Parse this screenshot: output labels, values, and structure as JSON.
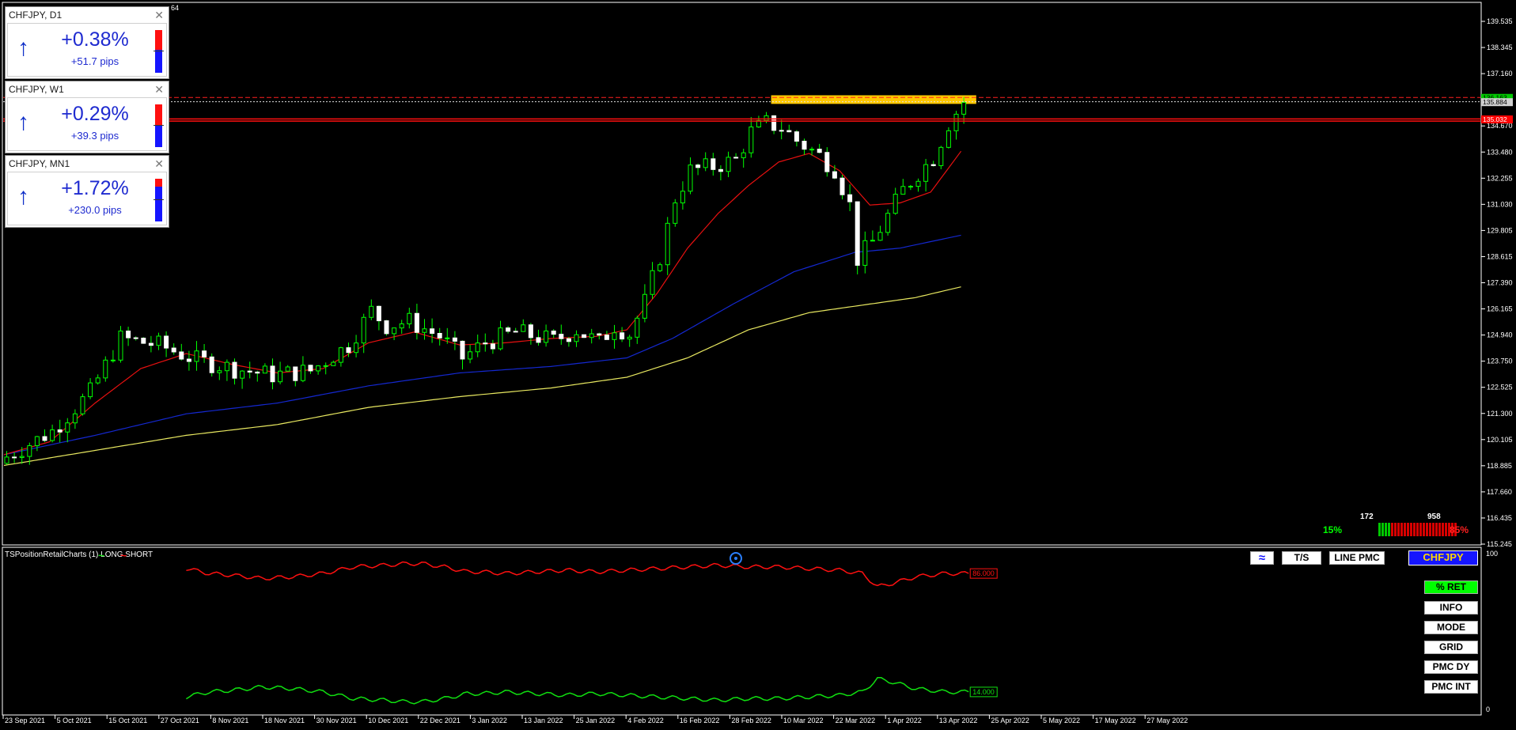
{
  "panels": [
    {
      "title": "CHFJPY, D1",
      "pct": "+0.38%",
      "pips": "+51.7 pips",
      "red_frac": 0.47
    },
    {
      "title": "CHFJPY, W1",
      "pct": "+0.29%",
      "pips": "+39.3 pips",
      "red_frac": 0.48
    },
    {
      "title": "CHFJPY, MN1",
      "pct": "+1.72%",
      "pips": "+230.0 pips",
      "red_frac": 0.18
    }
  ],
  "close_glyph": "✕",
  "top_label": "64",
  "price_axis": [
    "139.535",
    "138.345",
    "137.160",
    "135.970",
    "134.670",
    "133.480",
    "132.255",
    "131.030",
    "129.805",
    "128.615",
    "127.390",
    "126.165",
    "124.940",
    "123.750",
    "122.525",
    "121.300",
    "120.105",
    "118.885",
    "117.660",
    "116.435",
    "115.245"
  ],
  "price_tags": [
    {
      "text": "136.163",
      "price": 135.98,
      "bg": "#00c800",
      "color": "#000000"
    },
    {
      "text": "135.884",
      "price": 135.78,
      "bg": "#d0d0d0",
      "color": "#000000"
    },
    {
      "text": "135.032",
      "price": 134.98,
      "bg": "#ff0000",
      "color": "#ffffff"
    }
  ],
  "date_axis": [
    "23 Sep 2021",
    "5 Oct 2021",
    "15 Oct 2021",
    "27 Oct 2021",
    "8 Nov 2021",
    "18 Nov 2021",
    "30 Nov 2021",
    "10 Dec 2021",
    "22 Dec 2021",
    "3 Jan 2022",
    "13 Jan 2022",
    "25 Jan 2022",
    "4 Feb 2022",
    "16 Feb 2022",
    "28 Feb 2022",
    "10 Mar 2022",
    "22 Mar 2022",
    "1 Apr 2022",
    "13 Apr 2022",
    "25 Apr 2022",
    "5 May 2022",
    "17 May 2022",
    "27 May 2022"
  ],
  "indicator": {
    "title": "TSPositionRetailCharts (1) LONG SHORT",
    "legend_green": "~",
    "legend_red": "~",
    "axis_top": "100",
    "axis_bottom": "0",
    "short_value": "86.000",
    "long_value": "14.000"
  },
  "sentiment": {
    "long_count": "172",
    "short_count": "958",
    "long_pct": "15%",
    "short_pct": "85%"
  },
  "toolbar": {
    "wave_icon": "≈",
    "ts": "T/S",
    "line_pmc": "LINE PMC",
    "symbol": "CHFJPY",
    "ret": "% RET",
    "info": "INFO",
    "mode": "MODE",
    "grid": "GRID",
    "pmc_dy": "PMC DY",
    "pmc_int": "PMC INT"
  },
  "colors": {
    "bull": "#00ff00",
    "bear": "#ffffff",
    "ma_red": "#e81010",
    "ma_blue": "#1428d0",
    "ma_yellow": "#e8e860",
    "zone": "#ffc800",
    "short_line": "#ff1010",
    "long_line": "#10e010"
  },
  "chart_data": {
    "type": "candlestick",
    "symbol": "CHFJPY",
    "timeframe": "D1",
    "ylim": [
      115.245,
      140.1
    ],
    "close_path": [
      [
        0,
        119.3
      ],
      [
        6,
        120.5
      ],
      [
        11,
        122.3
      ],
      [
        15,
        124.8
      ],
      [
        20,
        124.5
      ],
      [
        25,
        123.8
      ],
      [
        30,
        123.4
      ],
      [
        35,
        123.1
      ],
      [
        40,
        123.3
      ],
      [
        45,
        124.5
      ],
      [
        48,
        126.1
      ],
      [
        50,
        125.4
      ],
      [
        53,
        125.6
      ],
      [
        57,
        124.9
      ],
      [
        60,
        123.9
      ],
      [
        63,
        124.6
      ],
      [
        67,
        125.1
      ],
      [
        72,
        124.7
      ],
      [
        75,
        125.2
      ],
      [
        78,
        124.6
      ],
      [
        80,
        125.4
      ],
      [
        82,
        125.0
      ],
      [
        84,
        126.5
      ],
      [
        86,
        128.6
      ],
      [
        88,
        131.3
      ],
      [
        90,
        132.6
      ],
      [
        93,
        132.8
      ],
      [
        96,
        133.1
      ],
      [
        98,
        134.4
      ],
      [
        100,
        134.8
      ],
      [
        102,
        134.6
      ],
      [
        104,
        134.0
      ],
      [
        107,
        133.3
      ],
      [
        109,
        132.7
      ],
      [
        111,
        131.0
      ],
      [
        112,
        128.5
      ],
      [
        114,
        129.3
      ],
      [
        116,
        130.5
      ],
      [
        118,
        131.7
      ],
      [
        120,
        132.5
      ],
      [
        122,
        133.2
      ],
      [
        124,
        134.8
      ],
      [
        126,
        135.8
      ]
    ],
    "ma_red": [
      [
        0,
        119.4
      ],
      [
        6,
        120.0
      ],
      [
        12,
        121.8
      ],
      [
        18,
        123.4
      ],
      [
        24,
        124.1
      ],
      [
        30,
        123.6
      ],
      [
        36,
        123.2
      ],
      [
        42,
        123.4
      ],
      [
        48,
        124.6
      ],
      [
        54,
        125.1
      ],
      [
        60,
        124.5
      ],
      [
        66,
        124.6
      ],
      [
        72,
        124.8
      ],
      [
        78,
        124.9
      ],
      [
        82,
        125.2
      ],
      [
        86,
        126.9
      ],
      [
        90,
        129.0
      ],
      [
        94,
        130.6
      ],
      [
        98,
        131.9
      ],
      [
        102,
        133.0
      ],
      [
        106,
        133.4
      ],
      [
        110,
        132.6
      ],
      [
        114,
        131.0
      ],
      [
        118,
        131.1
      ],
      [
        122,
        131.6
      ],
      [
        126,
        133.5
      ]
    ],
    "ma_blue": [
      [
        0,
        119.4
      ],
      [
        12,
        120.3
      ],
      [
        24,
        121.3
      ],
      [
        36,
        121.8
      ],
      [
        48,
        122.6
      ],
      [
        60,
        123.2
      ],
      [
        72,
        123.5
      ],
      [
        82,
        123.9
      ],
      [
        88,
        124.8
      ],
      [
        96,
        126.4
      ],
      [
        104,
        127.9
      ],
      [
        112,
        128.8
      ],
      [
        118,
        129.0
      ],
      [
        126,
        129.6
      ]
    ],
    "ma_yellow": [
      [
        0,
        118.9
      ],
      [
        12,
        119.6
      ],
      [
        24,
        120.3
      ],
      [
        36,
        120.8
      ],
      [
        48,
        121.6
      ],
      [
        60,
        122.1
      ],
      [
        72,
        122.5
      ],
      [
        82,
        123.0
      ],
      [
        90,
        123.9
      ],
      [
        98,
        125.2
      ],
      [
        106,
        126.0
      ],
      [
        114,
        126.4
      ],
      [
        120,
        126.7
      ],
      [
        126,
        127.2
      ]
    ],
    "levels": [
      136.0,
      135.8,
      135.0,
      134.9
    ],
    "zone": {
      "from_bar": 101,
      "to_bar": 128,
      "low": 135.7,
      "high": 136.1
    },
    "indicator_short": [
      [
        24,
        89
      ],
      [
        27,
        86
      ],
      [
        30,
        85
      ],
      [
        34,
        83
      ],
      [
        38,
        84
      ],
      [
        42,
        86
      ],
      [
        46,
        90
      ],
      [
        50,
        91
      ],
      [
        53,
        92
      ],
      [
        55,
        92
      ],
      [
        58,
        90
      ],
      [
        61,
        87
      ],
      [
        63,
        87
      ],
      [
        66,
        86
      ],
      [
        70,
        87
      ],
      [
        74,
        88
      ],
      [
        78,
        87
      ],
      [
        82,
        88
      ],
      [
        86,
        89
      ],
      [
        90,
        90
      ],
      [
        94,
        91
      ],
      [
        98,
        90
      ],
      [
        102,
        90
      ],
      [
        106,
        89
      ],
      [
        110,
        88
      ],
      [
        113,
        86
      ],
      [
        115,
        78
      ],
      [
        117,
        80
      ],
      [
        120,
        84
      ],
      [
        124,
        86
      ],
      [
        127,
        86
      ]
    ],
    "indicator_long": [
      [
        24,
        11
      ],
      [
        27,
        14
      ],
      [
        30,
        15
      ],
      [
        34,
        17
      ],
      [
        38,
        16
      ],
      [
        42,
        14
      ],
      [
        46,
        10
      ],
      [
        50,
        9
      ],
      [
        53,
        8
      ],
      [
        55,
        8
      ],
      [
        58,
        10
      ],
      [
        61,
        13
      ],
      [
        63,
        13
      ],
      [
        66,
        14
      ],
      [
        70,
        13
      ],
      [
        74,
        12
      ],
      [
        78,
        13
      ],
      [
        82,
        12
      ],
      [
        86,
        11
      ],
      [
        90,
        10
      ],
      [
        94,
        9
      ],
      [
        98,
        10
      ],
      [
        102,
        10
      ],
      [
        106,
        11
      ],
      [
        110,
        12
      ],
      [
        113,
        14
      ],
      [
        115,
        22
      ],
      [
        117,
        20
      ],
      [
        120,
        16
      ],
      [
        124,
        14
      ],
      [
        127,
        14
      ]
    ]
  }
}
